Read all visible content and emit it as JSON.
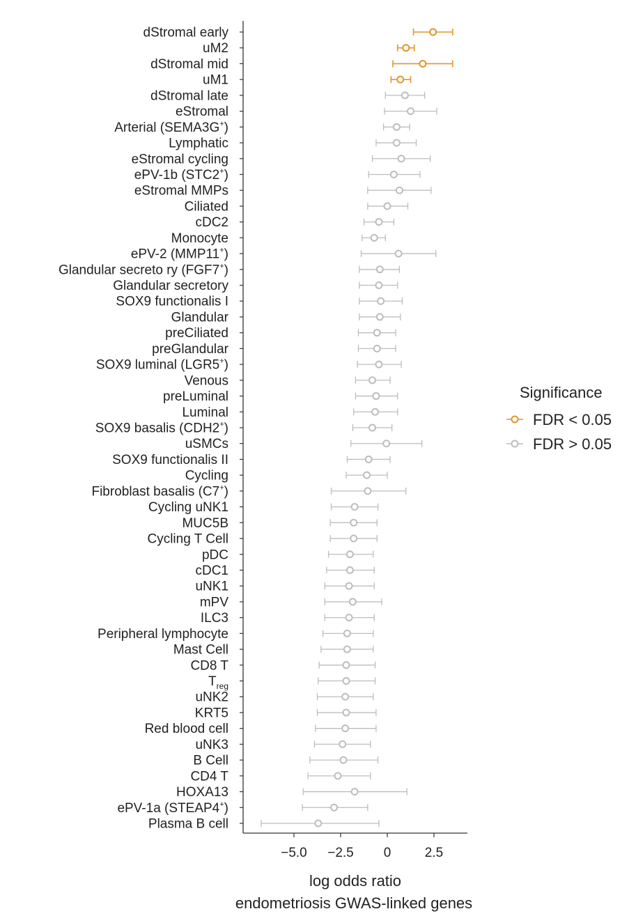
{
  "chart_data": {
    "type": "forest",
    "xlabel": [
      "log odds ratio",
      "endometriosis GWAS-linked genes"
    ],
    "xlim": [
      -7,
      4.2
    ],
    "xticks": [
      -5.0,
      -2.5,
      0,
      2.5
    ],
    "xtick_labels": [
      "−5.0",
      "−2.5",
      "0",
      "2.5"
    ],
    "legend": {
      "title": "Significance",
      "position": "right",
      "entries": [
        {
          "label": "FDR < 0.05",
          "color": "#e0962a"
        },
        {
          "label": "FDR > 0.05",
          "color": "#bdbdbd"
        }
      ]
    },
    "rows": [
      {
        "label": "dStromal early",
        "label_color": "#e06b8b",
        "or": 2.45,
        "low": 1.4,
        "high": 3.5,
        "significant": true
      },
      {
        "label": "uM2",
        "label_color": "#1f6e8c",
        "or": 1.0,
        "low": 0.55,
        "high": 1.45,
        "significant": true
      },
      {
        "label": "dStromal mid",
        "label_color": "#eb9bb4",
        "or": 1.9,
        "low": 0.3,
        "high": 3.5,
        "significant": true
      },
      {
        "label": "uM1",
        "label_color": "#7fc3d9",
        "or": 0.7,
        "low": 0.2,
        "high": 1.25,
        "significant": true
      },
      {
        "label": "dStromal late",
        "or": 0.95,
        "low": -0.1,
        "high": 2.0,
        "significant": false
      },
      {
        "label": "eStromal",
        "or": 1.25,
        "low": -0.15,
        "high": 2.65,
        "significant": false
      },
      {
        "label": "Arterial (SEMA3G",
        "sup": "+",
        "after": ")",
        "or": 0.5,
        "low": -0.2,
        "high": 1.2,
        "significant": false
      },
      {
        "label": "Lymphatic",
        "or": 0.5,
        "low": -0.6,
        "high": 1.55,
        "significant": false
      },
      {
        "label": "eStromal cycling",
        "or": 0.75,
        "low": -0.8,
        "high": 2.3,
        "significant": false
      },
      {
        "label": "ePV-1b (STC2",
        "sup": "+",
        "after": ")",
        "or": 0.35,
        "low": -1.0,
        "high": 1.75,
        "significant": false
      },
      {
        "label": "eStromal MMPs",
        "or": 0.65,
        "low": -1.05,
        "high": 2.35,
        "significant": false
      },
      {
        "label": "Ciliated",
        "or": 0.0,
        "low": -1.05,
        "high": 1.1,
        "significant": false
      },
      {
        "label": "cDC2",
        "or": -0.45,
        "low": -1.25,
        "high": 0.35,
        "significant": false
      },
      {
        "label": "Monocyte",
        "or": -0.7,
        "low": -1.35,
        "high": -0.1,
        "significant": false
      },
      {
        "label": "ePV-2 (MMP11",
        "sup": "+",
        "after": ")",
        "or": 0.6,
        "low": -1.4,
        "high": 2.6,
        "significant": false
      },
      {
        "label": "Glandular secreto ry (FGF7",
        "sup": "+",
        "after": ")",
        "or": -0.4,
        "low": -1.5,
        "high": 0.65,
        "significant": false
      },
      {
        "label": "Glandular secretory",
        "or": -0.45,
        "low": -1.5,
        "high": 0.55,
        "significant": false
      },
      {
        "label": "SOX9 functionalis I",
        "or": -0.35,
        "low": -1.5,
        "high": 0.8,
        "significant": false
      },
      {
        "label": "Glandular",
        "or": -0.4,
        "low": -1.5,
        "high": 0.7,
        "significant": false
      },
      {
        "label": "preCiliated",
        "or": -0.55,
        "low": -1.55,
        "high": 0.45,
        "significant": false
      },
      {
        "label": "preGlandular",
        "or": -0.55,
        "low": -1.55,
        "high": 0.45,
        "significant": false
      },
      {
        "label": "SOX9 luminal (LGR5",
        "sup": "+",
        "after": ")",
        "or": -0.45,
        "low": -1.6,
        "high": 0.75,
        "significant": false
      },
      {
        "label": "Venous",
        "or": -0.8,
        "low": -1.7,
        "high": 0.15,
        "significant": false
      },
      {
        "label": "preLuminal",
        "or": -0.6,
        "low": -1.7,
        "high": 0.55,
        "significant": false
      },
      {
        "label": "Luminal",
        "or": -0.65,
        "low": -1.8,
        "high": 0.55,
        "significant": false
      },
      {
        "label": "SOX9 basalis (CDH2",
        "sup": "+",
        "after": ")",
        "or": -0.8,
        "low": -1.85,
        "high": 0.25,
        "significant": false
      },
      {
        "label": "uSMCs",
        "or": -0.05,
        "low": -1.95,
        "high": 1.85,
        "significant": false
      },
      {
        "label": "SOX9 functionalis II",
        "or": -1.0,
        "low": -2.15,
        "high": 0.15,
        "significant": false
      },
      {
        "label": "Cycling",
        "or": -1.1,
        "low": -2.2,
        "high": 0.0,
        "significant": false
      },
      {
        "label": "Fibroblast basalis (C7",
        "sup": "+",
        "after": ")",
        "or": -1.05,
        "low": -3.0,
        "high": 1.0,
        "significant": false
      },
      {
        "label": "Cycling uNK1",
        "or": -1.75,
        "low": -3.0,
        "high": -0.5,
        "significant": false
      },
      {
        "label": "MUC5B",
        "or": -1.8,
        "low": -3.05,
        "high": -0.55,
        "significant": false
      },
      {
        "label": "Cycling T Cell",
        "or": -1.8,
        "low": -3.05,
        "high": -0.55,
        "significant": false
      },
      {
        "label": "pDC",
        "or": -2.0,
        "low": -3.15,
        "high": -0.75,
        "significant": false
      },
      {
        "label": "cDC1",
        "or": -2.0,
        "low": -3.25,
        "high": -0.7,
        "significant": false
      },
      {
        "label": "uNK1",
        "or": -2.05,
        "low": -3.35,
        "high": -0.7,
        "significant": false
      },
      {
        "label": "mPV",
        "or": -1.85,
        "low": -3.35,
        "high": -0.3,
        "significant": false
      },
      {
        "label": "ILC3",
        "or": -2.05,
        "low": -3.35,
        "high": -0.7,
        "significant": false
      },
      {
        "label": "Peripheral lymphocyte",
        "or": -2.15,
        "low": -3.45,
        "high": -0.75,
        "significant": false
      },
      {
        "label": "Mast Cell",
        "or": -2.15,
        "low": -3.55,
        "high": -0.75,
        "significant": false
      },
      {
        "label": "CD8 T",
        "or": -2.2,
        "low": -3.65,
        "high": -0.65,
        "significant": false
      },
      {
        "label": "T",
        "sub": "reg",
        "or": -2.2,
        "low": -3.7,
        "high": -0.65,
        "significant": false
      },
      {
        "label": "uNK2",
        "or": -2.25,
        "low": -3.75,
        "high": -0.75,
        "significant": false
      },
      {
        "label": "KRT5",
        "or": -2.2,
        "low": -3.75,
        "high": -0.6,
        "significant": false
      },
      {
        "label": "Red blood cell",
        "or": -2.25,
        "low": -3.85,
        "high": -0.6,
        "significant": false
      },
      {
        "label": "uNK3",
        "or": -2.4,
        "low": -3.9,
        "high": -0.9,
        "significant": false
      },
      {
        "label": "B Cell",
        "or": -2.35,
        "low": -4.15,
        "high": -0.5,
        "significant": false
      },
      {
        "label": "CD4 T",
        "or": -2.65,
        "low": -4.25,
        "high": -0.9,
        "significant": false
      },
      {
        "label": "HOXA13",
        "or": -1.75,
        "low": -4.5,
        "high": 1.05,
        "significant": false
      },
      {
        "label": "ePV-1a (STEAP4",
        "sup": "+",
        "after": ")",
        "or": -2.85,
        "low": -4.55,
        "high": -1.05,
        "significant": false
      },
      {
        "label": "Plasma B cell",
        "or": -3.7,
        "low": -6.75,
        "high": -0.45,
        "significant": false
      }
    ]
  }
}
